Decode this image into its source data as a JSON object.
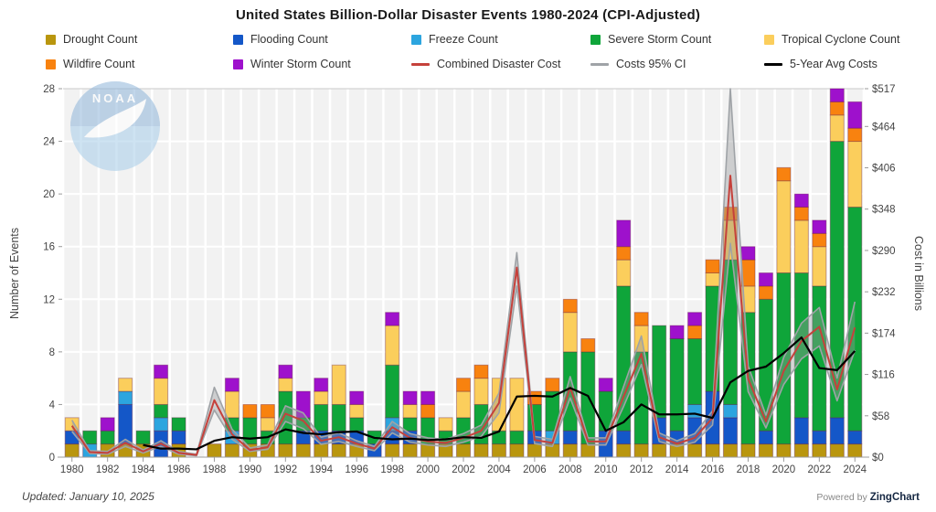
{
  "title": "United States Billion-Dollar Disaster Events 1980-2024 (CPI-Adjusted)",
  "watermark": {
    "name": "noaa-logo",
    "text": "NOAA"
  },
  "footer": {
    "updated": "Updated: January 10, 2025",
    "powered_prefix": "Powered by ",
    "powered_brand": "ZingChart"
  },
  "axes": {
    "left_title": "Number of Events",
    "right_title": "Cost in Billions",
    "left_ticks": [
      0,
      4,
      8,
      12,
      16,
      20,
      24,
      28
    ],
    "left_max": 28,
    "right_ticks": [
      {
        "label": "$0",
        "value": 0
      },
      {
        "label": "$58",
        "value": 58
      },
      {
        "label": "$116",
        "value": 116
      },
      {
        "label": "$174",
        "value": 174
      },
      {
        "label": "$232",
        "value": 232
      },
      {
        "label": "$290",
        "value": 290
      },
      {
        "label": "$348",
        "value": 348
      },
      {
        "label": "$406",
        "value": 406
      },
      {
        "label": "$464",
        "value": 464
      },
      {
        "label": "$517",
        "value": 517
      }
    ],
    "right_max": 517
  },
  "chart_data": {
    "type": "bar",
    "subtype": "stacked-bars-with-cost-lines",
    "title": "United States Billion-Dollar Disaster Events 1980-2024 (CPI-Adjusted)",
    "xlabel": "",
    "ylabel_left": "Number of Events",
    "ylabel_right": "Cost in Billions",
    "ylim_left": [
      0,
      28
    ],
    "ylim_right": [
      0,
      517
    ],
    "grid": true,
    "legend_position": "top",
    "categories": [
      1980,
      1981,
      1982,
      1983,
      1984,
      1985,
      1986,
      1987,
      1988,
      1989,
      1990,
      1991,
      1992,
      1993,
      1994,
      1995,
      1996,
      1997,
      1998,
      1999,
      2000,
      2001,
      2002,
      2003,
      2004,
      2005,
      2006,
      2007,
      2008,
      2009,
      2010,
      2011,
      2012,
      2013,
      2014,
      2015,
      2016,
      2017,
      2018,
      2019,
      2020,
      2021,
      2022,
      2023,
      2024
    ],
    "x_tick_labels": [
      1980,
      1982,
      1984,
      1986,
      1988,
      1990,
      1992,
      1994,
      1996,
      1998,
      2000,
      2002,
      2004,
      2006,
      2008,
      2010,
      2012,
      2014,
      2016,
      2018,
      2020,
      2022,
      2024
    ],
    "series": [
      {
        "name": "Drought Count",
        "color": "#B9960E",
        "values": [
          1,
          0,
          1,
          1,
          1,
          0,
          1,
          0,
          1,
          1,
          1,
          1,
          1,
          1,
          1,
          1,
          1,
          0,
          1,
          1,
          1,
          1,
          1,
          1,
          1,
          1,
          1,
          1,
          1,
          1,
          0,
          1,
          1,
          1,
          1,
          1,
          1,
          1,
          1,
          1,
          1,
          1,
          1,
          1,
          1
        ]
      },
      {
        "name": "Flooding Count",
        "color": "#1457C8",
        "values": [
          1,
          0,
          0,
          3,
          0,
          2,
          1,
          0,
          0,
          0,
          0,
          0,
          0,
          1,
          1,
          1,
          1,
          1,
          1,
          1,
          0,
          0,
          0,
          0,
          0,
          0,
          1,
          0,
          1,
          0,
          2,
          1,
          0,
          2,
          1,
          2,
          4,
          2,
          0,
          1,
          0,
          2,
          1,
          2,
          1
        ]
      },
      {
        "name": "Freeze Count",
        "color": "#2CA5DF",
        "values": [
          0,
          1,
          0,
          1,
          0,
          1,
          0,
          0,
          0,
          1,
          0,
          0,
          0,
          0,
          0,
          0,
          0,
          0,
          1,
          0,
          0,
          0,
          0,
          0,
          0,
          0,
          0,
          1,
          0,
          0,
          0,
          0,
          0,
          0,
          0,
          1,
          0,
          1,
          0,
          0,
          0,
          0,
          0,
          0,
          0
        ]
      },
      {
        "name": "Severe Storm Count",
        "color": "#0FA53A",
        "values": [
          0,
          1,
          1,
          0,
          1,
          1,
          1,
          0,
          0,
          1,
          2,
          1,
          4,
          1,
          2,
          2,
          1,
          1,
          4,
          1,
          2,
          1,
          2,
          3,
          1,
          1,
          2,
          3,
          6,
          7,
          3,
          11,
          7,
          7,
          7,
          5,
          8,
          11,
          10,
          10,
          13,
          11,
          11,
          21,
          17
        ]
      },
      {
        "name": "Tropical Cyclone Count",
        "color": "#FBCE5C",
        "values": [
          1,
          0,
          0,
          1,
          0,
          2,
          0,
          0,
          0,
          2,
          0,
          1,
          1,
          0,
          1,
          3,
          1,
          0,
          3,
          1,
          0,
          1,
          2,
          2,
          4,
          4,
          0,
          0,
          3,
          0,
          0,
          2,
          2,
          0,
          0,
          0,
          1,
          3,
          2,
          0,
          7,
          4,
          3,
          2,
          5
        ]
      },
      {
        "name": "Wildfire Count",
        "color": "#F8820F",
        "values": [
          0,
          0,
          0,
          0,
          0,
          0,
          0,
          0,
          0,
          0,
          1,
          1,
          0,
          0,
          0,
          0,
          0,
          0,
          0,
          0,
          1,
          0,
          1,
          1,
          0,
          0,
          1,
          1,
          1,
          1,
          0,
          1,
          1,
          0,
          0,
          1,
          1,
          1,
          2,
          1,
          1,
          1,
          1,
          1,
          1
        ]
      },
      {
        "name": "Winter Storm Count",
        "color": "#9E11CC",
        "values": [
          0,
          0,
          1,
          0,
          0,
          1,
          0,
          0,
          0,
          1,
          0,
          0,
          1,
          2,
          1,
          0,
          1,
          0,
          1,
          1,
          1,
          0,
          0,
          0,
          0,
          0,
          0,
          0,
          0,
          0,
          1,
          2,
          0,
          0,
          1,
          1,
          0,
          0,
          1,
          1,
          0,
          1,
          1,
          1,
          2
        ]
      }
    ],
    "lines": [
      {
        "name": "Combined Disaster Cost",
        "color": "#C5413B",
        "width": 2,
        "values": [
          44,
          7,
          6,
          20,
          8,
          19,
          6,
          3,
          80,
          32,
          10,
          14,
          61,
          51,
          23,
          28,
          19,
          12,
          42,
          27,
          22,
          20,
          27,
          37,
          76,
          266,
          24,
          20,
          98,
          22,
          22,
          85,
          145,
          28,
          19,
          27,
          55,
          395,
          110,
          50,
          121,
          163,
          183,
          95,
          182
        ]
      },
      {
        "name": "Costs 95% CI Upper",
        "color": "#9FA3A7",
        "width": 1.6,
        "values": [
          52,
          9,
          8,
          25,
          10,
          23,
          8,
          4,
          98,
          39,
          13,
          17,
          72,
          62,
          28,
          34,
          23,
          15,
          50,
          33,
          27,
          25,
          33,
          45,
          90,
          287,
          29,
          25,
          113,
          27,
          27,
          99,
          170,
          34,
          23,
          33,
          65,
          517,
          128,
          59,
          140,
          188,
          210,
          111,
          218
        ]
      },
      {
        "name": "Costs 95% CI Lower",
        "color": "#9FA3A7",
        "width": 1.6,
        "values": [
          36,
          5,
          4,
          15,
          6,
          15,
          4,
          2,
          66,
          25,
          8,
          11,
          50,
          40,
          18,
          22,
          15,
          9,
          34,
          21,
          17,
          15,
          21,
          29,
          62,
          240,
          19,
          15,
          83,
          17,
          17,
          71,
          130,
          22,
          15,
          21,
          45,
          300,
          92,
          41,
          102,
          138,
          156,
          79,
          150
        ]
      },
      {
        "name": "5-Year Avg Costs",
        "color": "#000000",
        "width": 2.2,
        "values": [
          null,
          null,
          null,
          null,
          17,
          12,
          12,
          11,
          23,
          28,
          26,
          28,
          39,
          34,
          32,
          35,
          36,
          27,
          25,
          26,
          24,
          25,
          28,
          27,
          36,
          85,
          86,
          85,
          97,
          86,
          37,
          49,
          74,
          60,
          60,
          61,
          55,
          105,
          121,
          127,
          146,
          168,
          125,
          122,
          149
        ]
      }
    ],
    "ci_band": {
      "name": "Costs 95% CI",
      "fill": "rgba(150,153,156,0.40)"
    }
  },
  "legend": {
    "items": [
      {
        "label": "Drought Count",
        "color": "#B9960E",
        "swatch": "square"
      },
      {
        "label": "Flooding Count",
        "color": "#1457C8",
        "swatch": "square"
      },
      {
        "label": "Freeze Count",
        "color": "#2CA5DF",
        "swatch": "square"
      },
      {
        "label": "Severe Storm Count",
        "color": "#0FA53A",
        "swatch": "square"
      },
      {
        "label": "Tropical Cyclone Count",
        "color": "#FBCE5C",
        "swatch": "square"
      },
      {
        "label": "Wildfire Count",
        "color": "#F8820F",
        "swatch": "square"
      },
      {
        "label": "Winter Storm Count",
        "color": "#9E11CC",
        "swatch": "square"
      },
      {
        "label": "Combined Disaster Cost",
        "color": "#C5413B",
        "swatch": "line"
      },
      {
        "label": "Costs 95% CI",
        "color": "#9FA3A7",
        "swatch": "line"
      },
      {
        "label": "5-Year Avg Costs",
        "color": "#000000",
        "swatch": "line"
      }
    ]
  },
  "colors": {
    "plot_background": "#F2F2F2",
    "grid_line": "#FFFFFF",
    "axis_line": "#9B9B9B",
    "tick_text": "#444444",
    "title_text": "#1A1A1A"
  }
}
